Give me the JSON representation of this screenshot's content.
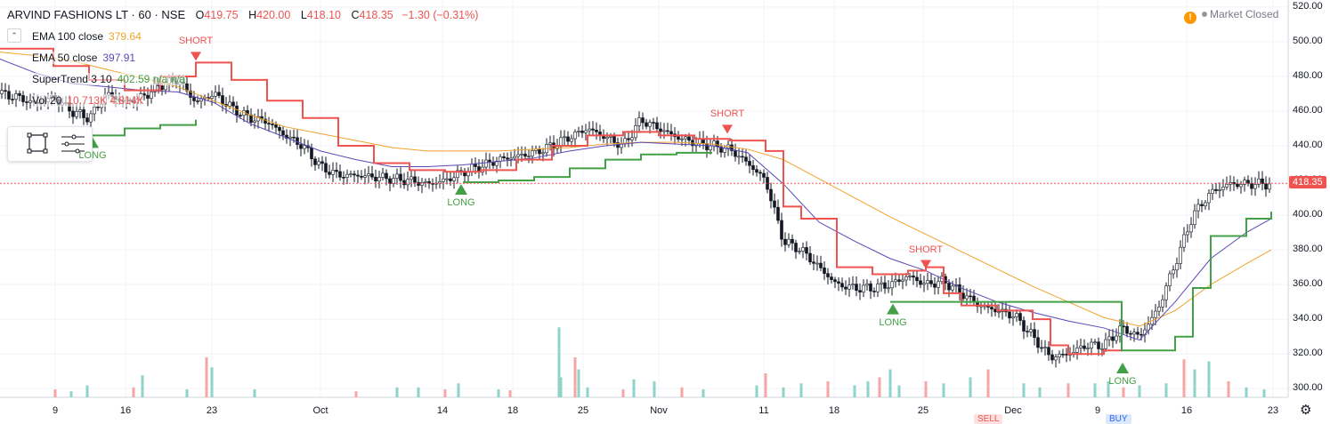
{
  "header": {
    "symbol": "ARVIND FASHIONS LT · 60 · NSE",
    "open_label": "O",
    "open": "419.75",
    "high_label": "H",
    "high": "420.00",
    "low_label": "L",
    "low": "418.10",
    "close_label": "C",
    "close": "418.35",
    "change": "−1.30 (−0.31%)"
  },
  "indicators": [
    {
      "name": "EMA 100 close",
      "value": "379.64",
      "color": "#f0a22b"
    },
    {
      "name": "EMA 50 close",
      "value": "397.91",
      "color": "#5b47b5"
    },
    {
      "name": "SuperTrend 3 10",
      "value": "402.59  n/a  n/a",
      "color": "#43a047"
    },
    {
      "name": "Vol 20",
      "value": "10.713K  4.814K",
      "color": "#ef5350"
    }
  ],
  "market_status": {
    "icon": "!",
    "label": "Market Closed"
  },
  "price_axis": {
    "ticks": [
      "520.00",
      "500.00",
      "480.00",
      "460.00",
      "440.00",
      "420.00",
      "400.00",
      "380.00",
      "360.00",
      "340.00",
      "320.00",
      "300.00"
    ],
    "current": "418.35"
  },
  "time_axis": {
    "ticks": [
      "9",
      "16",
      "23",
      "Oct",
      "14",
      "18",
      "25",
      "Nov",
      "11",
      "18",
      "25",
      "Dec",
      "9",
      "16",
      "23"
    ]
  },
  "trade_buttons": {
    "sell": "SELL",
    "buy": "BUY"
  },
  "chart_data": {
    "type": "candlestick",
    "title": "ARVIND FASHIONS LT · 60 · NSE",
    "ylim": [
      295,
      522
    ],
    "grid": true,
    "series": [
      {
        "name": "EMA 100 close",
        "color": "#f0a22b",
        "x": [
          0,
          40,
          80,
          120,
          160,
          200,
          240,
          280,
          320,
          360,
          400,
          440,
          480,
          520,
          560,
          600,
          640,
          680,
          720,
          760,
          800,
          840,
          880,
          920,
          960,
          1000,
          1040,
          1080,
          1120,
          1160,
          1200,
          1240,
          1280,
          1320,
          1360,
          1400,
          1428
        ],
        "values": [
          494,
          492,
          489,
          484,
          479,
          474,
          466,
          458,
          451,
          447,
          443,
          439,
          437,
          437,
          437,
          438,
          439,
          441,
          442,
          442,
          441,
          438,
          432,
          421,
          410,
          399,
          389,
          379,
          369,
          359,
          350,
          341,
          336,
          345,
          360,
          372,
          380
        ]
      },
      {
        "name": "EMA 50 close",
        "color": "#5b47b5",
        "x": [
          0,
          40,
          80,
          120,
          160,
          200,
          240,
          280,
          320,
          360,
          400,
          440,
          480,
          520,
          560,
          600,
          640,
          680,
          720,
          760,
          800,
          840,
          880,
          920,
          960,
          1000,
          1040,
          1080,
          1120,
          1160,
          1200,
          1240,
          1280,
          1320,
          1360,
          1400,
          1428
        ],
        "values": [
          490,
          482,
          476,
          474,
          472,
          471,
          465,
          453,
          445,
          437,
          432,
          428,
          428,
          429,
          431,
          433,
          437,
          440,
          442,
          441,
          440,
          436,
          418,
          396,
          385,
          375,
          368,
          358,
          350,
          344,
          339,
          335,
          328,
          350,
          375,
          390,
          398
        ]
      },
      {
        "name": "SuperTrend 3 10",
        "color": "#ef5350",
        "x": [
          0,
          60,
          100,
          140,
          180,
          220,
          260,
          300,
          340,
          380,
          420,
          460,
          500,
          540,
          580,
          620,
          660,
          700,
          740,
          780,
          820,
          860,
          880,
          900,
          940,
          980,
          1020,
          1040,
          1060,
          1080,
          1120,
          1160,
          1180,
          1200,
          1240,
          1260
        ],
        "values": [
          496,
          486,
          478,
          472,
          480,
          488,
          478,
          466,
          456,
          440,
          430,
          426,
          425,
          426,
          432,
          440,
          446,
          448,
          446,
          444,
          443,
          437,
          405,
          398,
          370,
          366,
          368,
          370,
          355,
          348,
          345,
          340,
          325,
          320,
          322,
          326
        ]
      },
      {
        "name": "SuperTrend long",
        "color": "#43a047",
        "x": [
          0,
          60,
          100,
          140,
          180,
          220,
          260,
          300,
          340,
          380,
          420,
          460,
          500,
          520,
          560,
          600,
          640,
          680,
          720,
          760,
          800,
          820,
          1000,
          1040,
          1260,
          1300,
          1320,
          1340,
          1360,
          1400,
          1428
        ],
        "values": [
          null,
          null,
          446,
          450,
          452,
          455,
          null,
          null,
          null,
          null,
          null,
          null,
          null,
          419,
          420,
          422,
          427,
          432,
          435,
          436,
          436,
          null,
          350,
          350,
          322,
          322,
          330,
          358,
          388,
          398,
          402
        ]
      }
    ],
    "signals": [
      {
        "type": "SHORT",
        "x": 220,
        "value": 488
      },
      {
        "type": "LONG",
        "x": 104,
        "value": 446
      },
      {
        "type": "LONG",
        "x": 518,
        "value": 419
      },
      {
        "type": "SHORT",
        "x": 817,
        "value": 446
      },
      {
        "type": "SHORT",
        "x": 1040,
        "value": 368
      },
      {
        "type": "LONG",
        "x": 1003,
        "value": 350
      },
      {
        "type": "LONG",
        "x": 1261,
        "value": 316
      }
    ],
    "close_path": {
      "x": [
        0,
        20,
        40,
        60,
        80,
        100,
        120,
        140,
        160,
        180,
        200,
        220,
        240,
        260,
        280,
        300,
        320,
        340,
        360,
        380,
        400,
        420,
        440,
        460,
        480,
        500,
        520,
        540,
        560,
        580,
        600,
        620,
        640,
        660,
        680,
        700,
        720,
        740,
        760,
        780,
        800,
        820,
        840,
        860,
        880,
        900,
        920,
        940,
        960,
        980,
        1000,
        1020,
        1040,
        1060,
        1080,
        1100,
        1120,
        1140,
        1160,
        1180,
        1200,
        1220,
        1240,
        1260,
        1280,
        1300,
        1320,
        1340,
        1360,
        1380,
        1400,
        1428
      ],
      "values": [
        470,
        468,
        464,
        468,
        460,
        456,
        470,
        465,
        468,
        475,
        478,
        465,
        470,
        462,
        456,
        454,
        446,
        440,
        428,
        423,
        423,
        422,
        421,
        420,
        418,
        420,
        425,
        428,
        432,
        434,
        436,
        440,
        445,
        450,
        445,
        440,
        455,
        450,
        445,
        442,
        440,
        438,
        430,
        420,
        385,
        380,
        370,
        360,
        358,
        358,
        360,
        365,
        360,
        362,
        355,
        348,
        345,
        342,
        330,
        318,
        320,
        325,
        325,
        335,
        330,
        345,
        372,
        400,
        413,
        418,
        418,
        418
      ]
    },
    "volume": {
      "ylim": [
        0,
        80
      ],
      "x": [
        62,
        80,
        98,
        150,
        160,
        210,
        232,
        238,
        286,
        400,
        446,
        470,
        500,
        515,
        560,
        573,
        628,
        630,
        646,
        650,
        660,
        700,
        712,
        735,
        766,
        790,
        850,
        860,
        880,
        900,
        930,
        960,
        975,
        988,
        1000,
        1010,
        1040,
        1060,
        1090,
        1110,
        1150,
        1168,
        1200,
        1230,
        1245,
        1262,
        1280,
        1310,
        1330,
        1342,
        1358,
        1380,
        1400,
        1420
      ],
      "values": [
        8,
        6,
        12,
        10,
        22,
        8,
        40,
        30,
        8,
        6,
        10,
        10,
        8,
        14,
        8,
        7,
        70,
        20,
        40,
        28,
        10,
        8,
        18,
        16,
        10,
        8,
        12,
        24,
        10,
        14,
        16,
        12,
        16,
        20,
        28,
        12,
        16,
        14,
        20,
        28,
        14,
        10,
        14,
        14,
        16,
        10,
        12,
        14,
        38,
        28,
        36,
        16,
        10,
        8
      ]
    }
  }
}
